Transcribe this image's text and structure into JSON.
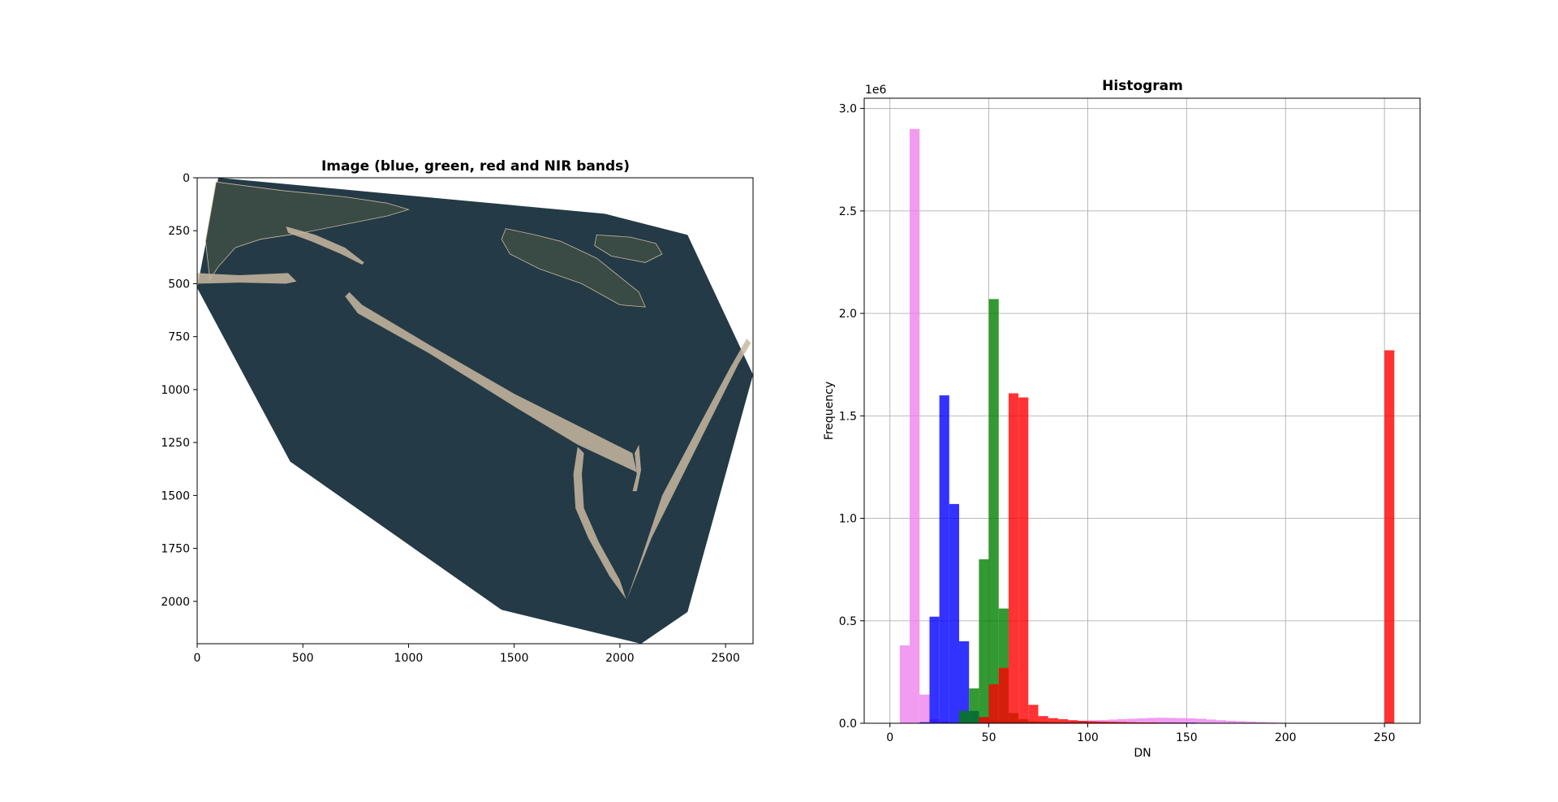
{
  "chart_data": [
    {
      "type": "image",
      "title": "Image (blue, green, red and NIR bands)",
      "xlabel": "",
      "ylabel": "",
      "xlim": [
        0,
        2630
      ],
      "ylim": [
        2200,
        0
      ],
      "xticks": [
        0,
        500,
        1000,
        1500,
        2000,
        2500
      ],
      "xtick_labels": [
        "0",
        "500",
        "1000",
        "1500",
        "2000",
        "2500"
      ],
      "yticks": [
        0,
        250,
        500,
        750,
        1000,
        1250,
        1500,
        1750,
        2000
      ],
      "ytick_labels": [
        "0",
        "250",
        "500",
        "750",
        "1000",
        "1250",
        "1500",
        "1750",
        "2000"
      ],
      "image": {
        "footprint": [
          [
            100,
            0
          ],
          [
            1930,
            170
          ],
          [
            2320,
            270
          ],
          [
            2630,
            930
          ],
          [
            2320,
            2050
          ],
          [
            2100,
            2200
          ],
          [
            1440,
            2040
          ],
          [
            440,
            1340
          ],
          [
            0,
            520
          ],
          [
            100,
            0
          ]
        ],
        "water_color": "#243a46",
        "land_color": "#3a4a44",
        "beach_color": "#c8b8a0",
        "islands": [
          {
            "kind": "spit",
            "points": [
              [
                700,
                560
              ],
              [
                760,
                640
              ],
              [
                1100,
                830
              ],
              [
                1500,
                1080
              ],
              [
                1800,
                1260
              ],
              [
                2080,
                1390
              ],
              [
                2060,
                1300
              ],
              [
                1800,
                1170
              ],
              [
                1500,
                1020
              ],
              [
                1100,
                790
              ],
              [
                780,
                600
              ],
              [
                720,
                540
              ]
            ]
          },
          {
            "kind": "spit",
            "points": [
              [
                2600,
                760
              ],
              [
                2520,
                900
              ],
              [
                2380,
                1160
              ],
              [
                2200,
                1500
              ],
              [
                2100,
                1800
              ],
              [
                2030,
                2000
              ],
              [
                2050,
                1950
              ],
              [
                2150,
                1700
              ],
              [
                2300,
                1400
              ],
              [
                2450,
                1100
              ],
              [
                2560,
                880
              ],
              [
                2620,
                780
              ]
            ]
          },
          {
            "kind": "spit",
            "points": [
              [
                1800,
                1270
              ],
              [
                1780,
                1400
              ],
              [
                1790,
                1560
              ],
              [
                1850,
                1700
              ],
              [
                1950,
                1880
              ],
              [
                2030,
                1990
              ],
              [
                2000,
                1900
              ],
              [
                1900,
                1720
              ],
              [
                1830,
                1560
              ],
              [
                1820,
                1400
              ],
              [
                1830,
                1300
              ]
            ]
          },
          {
            "kind": "land",
            "points": [
              [
                1460,
                240
              ],
              [
                1600,
                270
              ],
              [
                1720,
                300
              ],
              [
                1890,
                380
              ],
              [
                2090,
                540
              ],
              [
                2120,
                610
              ],
              [
                2000,
                600
              ],
              [
                1820,
                500
              ],
              [
                1620,
                430
              ],
              [
                1480,
                360
              ],
              [
                1440,
                290
              ]
            ]
          },
          {
            "kind": "land",
            "points": [
              [
                1890,
                270
              ],
              [
                2050,
                280
              ],
              [
                2170,
                310
              ],
              [
                2200,
                360
              ],
              [
                2120,
                400
              ],
              [
                1960,
                370
              ],
              [
                1880,
                320
              ]
            ]
          },
          {
            "kind": "land",
            "points": [
              [
                90,
                20
              ],
              [
                400,
                60
              ],
              [
                700,
                90
              ],
              [
                900,
                120
              ],
              [
                1000,
                150
              ],
              [
                900,
                180
              ],
              [
                700,
                220
              ],
              [
                500,
                260
              ],
              [
                300,
                290
              ],
              [
                180,
                330
              ],
              [
                100,
                420
              ],
              [
                60,
                480
              ],
              [
                40,
                300
              ]
            ]
          },
          {
            "kind": "spit",
            "points": [
              [
                420,
                230
              ],
              [
                560,
                270
              ],
              [
                700,
                330
              ],
              [
                790,
                400
              ],
              [
                780,
                410
              ],
              [
                680,
                360
              ],
              [
                540,
                300
              ],
              [
                430,
                260
              ]
            ]
          },
          {
            "kind": "spit",
            "points": [
              [
                0,
                450
              ],
              [
                200,
                460
              ],
              [
                430,
                450
              ],
              [
                470,
                490
              ],
              [
                420,
                500
              ],
              [
                200,
                495
              ],
              [
                0,
                500
              ]
            ]
          },
          {
            "kind": "spit",
            "points": [
              [
                2060,
                1480
              ],
              [
                2080,
                1400
              ],
              [
                2070,
                1300
              ],
              [
                2090,
                1260
              ],
              [
                2100,
                1380
              ],
              [
                2080,
                1480
              ]
            ]
          }
        ]
      }
    },
    {
      "type": "histogram",
      "title": "Histogram",
      "xlabel": "DN",
      "ylabel": "Frequency",
      "y_scale_label": "1e6",
      "y_scale": 1000000,
      "xlim": [
        -13,
        268
      ],
      "ylim": [
        0,
        3.05
      ],
      "xticks": [
        0,
        50,
        100,
        150,
        200,
        250
      ],
      "xtick_labels": [
        "0",
        "50",
        "100",
        "150",
        "200",
        "250"
      ],
      "yticks": [
        0.0,
        0.5,
        1.0,
        1.5,
        2.0,
        2.5,
        3.0
      ],
      "ytick_labels": [
        "0.0",
        "0.5",
        "1.0",
        "1.5",
        "2.0",
        "2.5",
        "3.0"
      ],
      "grid": true,
      "series": [
        {
          "color": "#ee82ee",
          "alpha": 0.8,
          "bin_edges": [
            5,
            10,
            15,
            20,
            25,
            30,
            35,
            40,
            45,
            50,
            55,
            60,
            65,
            70,
            75,
            80,
            85,
            90,
            95,
            100,
            105,
            110,
            115,
            120,
            125,
            130,
            135,
            140,
            145,
            150,
            155,
            160,
            165,
            170,
            175,
            180,
            185,
            190,
            195,
            200,
            205,
            210
          ],
          "counts": [
            0.38,
            2.9,
            0.14,
            0.02,
            0.01,
            0.005,
            0.005,
            0.005,
            0.005,
            0.005,
            0.005,
            0.005,
            0.005,
            0.005,
            0.005,
            0.005,
            0.005,
            0.01,
            0.012,
            0.014,
            0.016,
            0.018,
            0.02,
            0.022,
            0.024,
            0.026,
            0.027,
            0.026,
            0.025,
            0.024,
            0.022,
            0.018,
            0.015,
            0.012,
            0.01,
            0.008,
            0.006,
            0.004,
            0.003,
            0.002,
            0.001
          ]
        },
        {
          "color": "#0000ff",
          "alpha": 0.8,
          "bin_edges": [
            15,
            20,
            25,
            30,
            35,
            40,
            45,
            50,
            55,
            60,
            65,
            70,
            75,
            80,
            85,
            90,
            95,
            100,
            105,
            110,
            115,
            120,
            125,
            130,
            135,
            140,
            145,
            150,
            155,
            160,
            165,
            170,
            175,
            180,
            185,
            190,
            195,
            200
          ],
          "counts": [
            0.005,
            0.52,
            1.6,
            1.07,
            0.4,
            0.06,
            0.03,
            0.015,
            0.01,
            0.008,
            0.006,
            0.005,
            0.005,
            0.004,
            0.004,
            0.004,
            0.003,
            0.003,
            0.003,
            0.003,
            0.003,
            0.003,
            0.003,
            0.003,
            0.003,
            0.003,
            0.003,
            0.003,
            0.002,
            0.002,
            0.002,
            0.002,
            0.002,
            0.001,
            0.001,
            0.001,
            0.001
          ]
        },
        {
          "color": "#008000",
          "alpha": 0.8,
          "bin_edges": [
            35,
            40,
            45,
            50,
            55,
            60,
            65,
            70,
            75,
            80,
            85,
            90,
            95,
            100,
            105,
            110,
            115,
            120,
            125,
            130,
            135,
            140,
            145,
            150,
            155,
            160,
            165,
            170,
            175,
            180,
            185,
            190,
            195,
            200,
            205
          ],
          "counts": [
            0.06,
            0.17,
            0.8,
            2.07,
            0.56,
            0.05,
            0.02,
            0.01,
            0.008,
            0.006,
            0.005,
            0.004,
            0.004,
            0.003,
            0.003,
            0.003,
            0.003,
            0.003,
            0.003,
            0.002,
            0.002,
            0.002,
            0.002,
            0.002,
            0.002,
            0.002,
            0.001,
            0.001,
            0.001,
            0.001,
            0.001,
            0.001,
            0.001,
            0.001
          ]
        },
        {
          "color": "#ff0000",
          "alpha": 0.8,
          "bin_edges": [
            45,
            50,
            55,
            60,
            65,
            70,
            75,
            80,
            85,
            90,
            95,
            100,
            105,
            110,
            115,
            120,
            125,
            130,
            135,
            140,
            145,
            150,
            155,
            160,
            165,
            170,
            175,
            180,
            185,
            190,
            195,
            200,
            205,
            210,
            215,
            220,
            225,
            230,
            235,
            240,
            245,
            250,
            255
          ],
          "counts": [
            0.03,
            0.19,
            0.27,
            1.61,
            1.59,
            0.09,
            0.035,
            0.025,
            0.02,
            0.015,
            0.012,
            0.01,
            0.008,
            0.007,
            0.006,
            0.005,
            0.004,
            0.004,
            0.003,
            0.003,
            0.003,
            0.002,
            0.002,
            0.002,
            0.002,
            0.002,
            0.001,
            0.001,
            0.001,
            0.001,
            0.001,
            0.001,
            0.001,
            0.001,
            0.001,
            0.001,
            0.001,
            0.001,
            0.001,
            0.001,
            0.001,
            1.82
          ]
        }
      ]
    }
  ]
}
